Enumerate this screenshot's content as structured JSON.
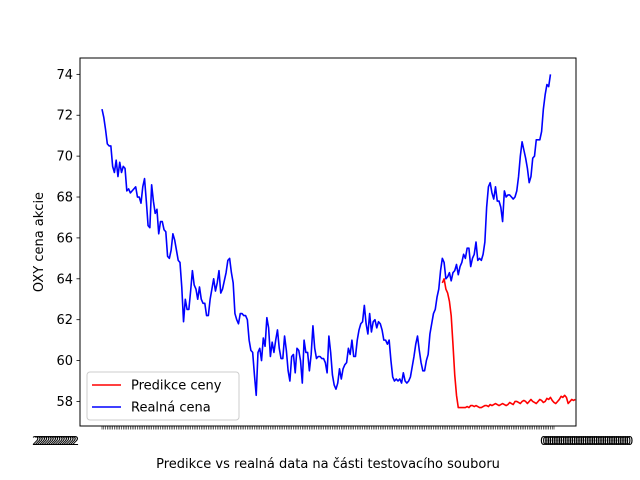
{
  "chart_data": {
    "type": "line",
    "title": "",
    "xlabel": "Predikce vs realná data na části testovacího souboru",
    "ylabel": "OXY cena akcie",
    "ylim": [
      56.8,
      74.8
    ],
    "yticks": [
      58,
      60,
      62,
      64,
      66,
      68,
      70,
      72,
      74
    ],
    "x_count": 256,
    "grid": false,
    "legend_position": "lower-left",
    "series": [
      {
        "name": "Predikce ceny",
        "color": "#ff0000",
        "x_start": 192,
        "values": [
          63.8,
          64.0,
          63.5,
          63.3,
          62.9,
          62.2,
          60.8,
          59.3,
          58.3,
          57.7,
          57.7,
          57.7,
          57.7,
          57.7,
          57.75,
          57.7,
          57.8,
          57.8,
          57.75,
          57.8,
          57.75,
          57.7,
          57.7,
          57.75,
          57.8,
          57.8,
          57.75,
          57.85,
          57.8,
          57.85,
          57.9,
          57.85,
          57.8,
          57.85,
          57.9,
          57.85,
          57.8,
          57.85,
          57.95,
          57.9,
          57.85,
          58.0,
          58.0,
          57.95,
          57.9,
          58.0,
          58.05,
          58.0,
          57.9,
          58.0,
          58.1,
          58.0,
          57.95,
          57.9,
          58.0,
          58.1,
          58.05,
          57.95,
          58.0,
          58.15,
          58.1,
          58.2,
          58.05,
          57.95,
          57.9,
          58.0,
          58.1,
          58.25,
          58.2,
          58.3,
          58.2,
          57.9,
          58.0,
          58.1,
          58.05,
          58.1
        ]
      },
      {
        "name": "Realná cena",
        "color": "#0000ff",
        "x_start": 0,
        "values": [
          72.3,
          71.9,
          71.3,
          70.6,
          70.5,
          70.5,
          69.5,
          69.2,
          69.8,
          69.0,
          69.7,
          69.2,
          69.5,
          69.4,
          68.3,
          68.4,
          68.2,
          68.3,
          68.4,
          68.5,
          68.0,
          68.0,
          67.7,
          68.5,
          68.9,
          67.8,
          66.6,
          66.5,
          68.6,
          67.8,
          67.2,
          67.4,
          66.2,
          66.8,
          66.8,
          66.4,
          66.3,
          65.1,
          65.0,
          65.4,
          66.2,
          65.9,
          65.4,
          64.9,
          64.8,
          63.6,
          61.9,
          63.0,
          62.5,
          62.5,
          63.4,
          64.4,
          63.7,
          63.5,
          63.0,
          63.6,
          63.0,
          62.8,
          62.8,
          62.2,
          62.2,
          63.0,
          63.5,
          64.0,
          63.4,
          63.8,
          64.4,
          63.3,
          63.5,
          63.9,
          64.3,
          64.9,
          65.0,
          64.3,
          63.8,
          62.3,
          62.0,
          61.8,
          62.3,
          62.3,
          62.2,
          62.2,
          62.0,
          61.0,
          60.5,
          60.4,
          59.3,
          58.3,
          60.4,
          60.6,
          60.0,
          61.1,
          60.7,
          62.1,
          61.6,
          60.2,
          60.9,
          60.4,
          61.0,
          61.5,
          60.6,
          60.1,
          60.1,
          61.2,
          60.5,
          59.5,
          59.0,
          60.2,
          60.3,
          59.4,
          60.6,
          60.5,
          60.0,
          58.9,
          61.0,
          60.4,
          60.4,
          59.5,
          60.3,
          61.7,
          60.6,
          60.1,
          60.2,
          60.2,
          60.1,
          60.1,
          59.9,
          59.4,
          61.2,
          60.4,
          59.3,
          58.8,
          58.6,
          58.9,
          59.6,
          59.1,
          59.6,
          59.8,
          59.9,
          60.6,
          60.3,
          61.0,
          60.2,
          60.2,
          61.0,
          61.5,
          61.8,
          61.9,
          62.7,
          61.8,
          61.3,
          62.3,
          61.4,
          61.9,
          62.0,
          61.6,
          61.9,
          61.8,
          61.5,
          61.0,
          61.0,
          60.8,
          61.0,
          60.0,
          59.2,
          59.0,
          59.1,
          59.0,
          59.1,
          58.9,
          59.4,
          59.0,
          58.9,
          59.0,
          59.2,
          59.7,
          60.2,
          60.8,
          61.2,
          60.5,
          59.9,
          59.5,
          59.5,
          60.0,
          60.3,
          61.3,
          61.8,
          62.3,
          62.5,
          63.1,
          63.5,
          64.4,
          65.0,
          64.8,
          64.0,
          64.1,
          64.3,
          63.9,
          64.3,
          64.4,
          64.7,
          64.2,
          64.6,
          64.8,
          65.2,
          65.0,
          65.5,
          65.5,
          64.6,
          65.0,
          65.2,
          65.8,
          64.9,
          65.0,
          64.9,
          65.2,
          65.8,
          67.5,
          68.5,
          68.7,
          68.2,
          67.9,
          68.5,
          67.8,
          67.8,
          67.5,
          66.8,
          68.3,
          68.0,
          68.1,
          68.1,
          68.0,
          67.9,
          68.0,
          68.3,
          69.0,
          70.0,
          70.7,
          70.3,
          69.9,
          69.4,
          68.7,
          69.0,
          69.9,
          70.0,
          70.8,
          70.8,
          70.8,
          71.2,
          72.3,
          73.0,
          73.5,
          73.4,
          74.0
        ]
      }
    ]
  }
}
